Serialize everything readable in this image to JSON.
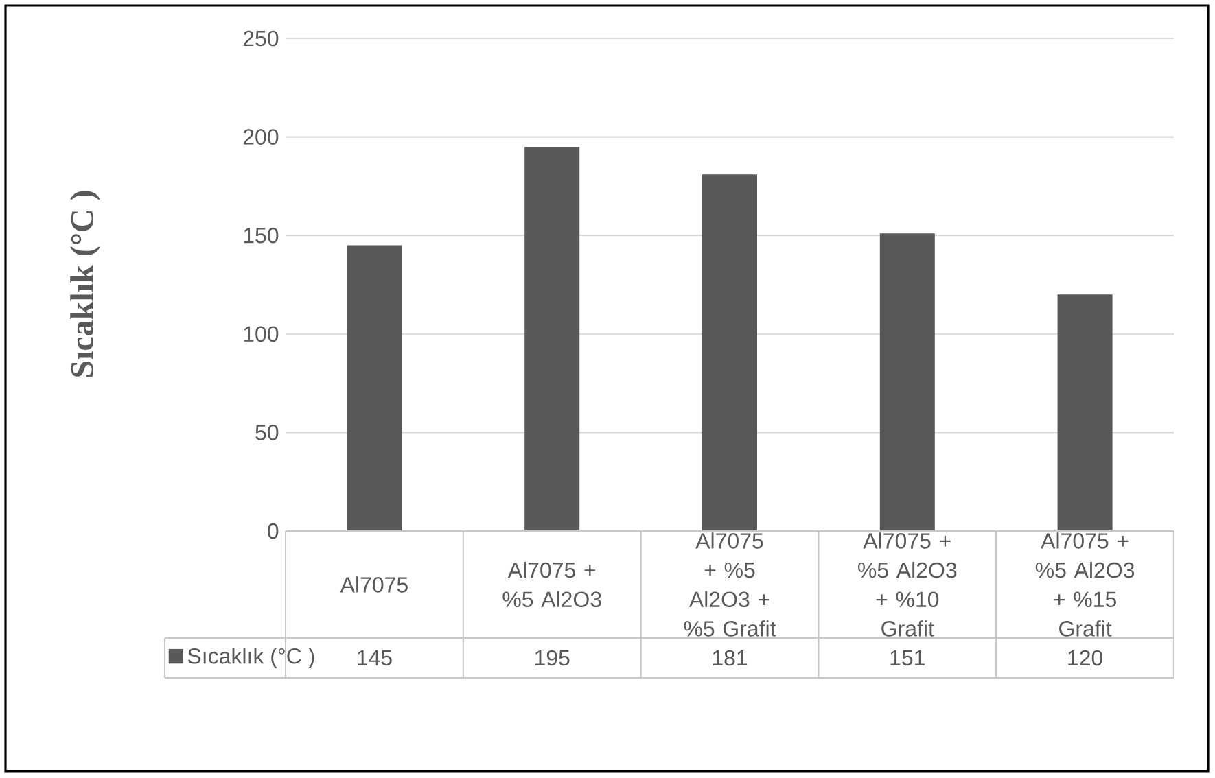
{
  "chart_data": {
    "type": "bar",
    "ylabel": "Sıcaklık (°C )",
    "categories": [
      "Al7075",
      "Al7075 + %5 Al2O3",
      "Al7075 + %5 Al2O3 + %5 Grafit",
      "Al7075 + %5 Al2O3 + %10 Grafit",
      "Al7075 + %5 Al2O3 + %15 Grafit"
    ],
    "series": [
      {
        "name": "Sıcaklık (°C )",
        "color": "#595959",
        "values": [
          145,
          195,
          181,
          151,
          120
        ]
      }
    ],
    "ylim": [
      0,
      250
    ],
    "yticks": [
      0,
      50,
      100,
      150,
      200,
      250
    ],
    "grid": "y",
    "legend": "bottom",
    "data_labels": true
  }
}
